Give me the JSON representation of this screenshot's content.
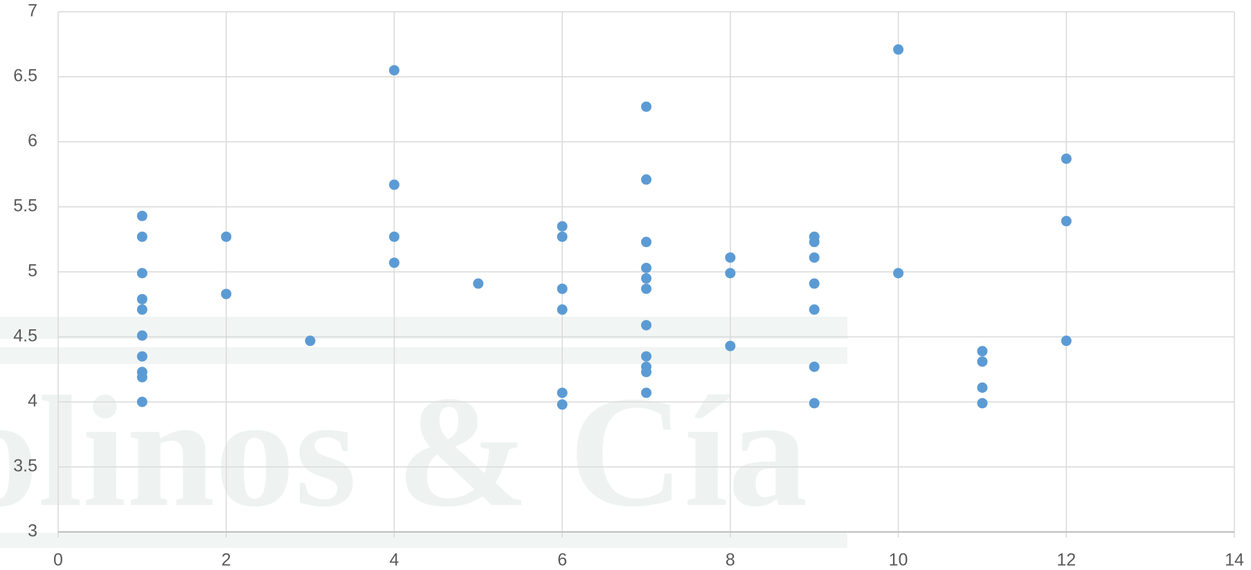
{
  "chart_data": {
    "type": "scatter",
    "watermark": "olinos & Cía",
    "x": [
      1,
      1,
      1,
      1,
      1,
      1,
      1,
      1,
      1,
      1,
      2,
      2,
      3,
      4,
      4,
      4,
      4,
      5,
      6,
      6,
      6,
      6,
      6,
      6,
      7,
      7,
      7,
      7,
      7,
      7,
      7,
      7,
      7,
      7,
      7,
      8,
      8,
      8,
      9,
      9,
      9,
      9,
      9,
      9,
      9,
      10,
      10,
      11,
      11,
      11,
      11,
      12,
      12,
      12
    ],
    "values": [
      5.43,
      5.27,
      4.99,
      4.79,
      4.71,
      4.51,
      4.35,
      4.23,
      4.19,
      4.0,
      5.27,
      4.83,
      4.47,
      6.55,
      5.67,
      5.27,
      5.07,
      4.91,
      5.35,
      5.27,
      4.87,
      4.71,
      4.07,
      3.98,
      6.27,
      5.71,
      5.23,
      5.03,
      4.95,
      4.87,
      4.59,
      4.35,
      4.27,
      4.23,
      4.07,
      5.11,
      4.99,
      4.43,
      5.27,
      5.23,
      5.11,
      4.91,
      4.71,
      4.27,
      3.99,
      6.71,
      4.99,
      4.39,
      4.31,
      4.11,
      3.99,
      5.87,
      5.39,
      4.47
    ],
    "color": "#5b9bd5",
    "xlim": [
      0,
      14
    ],
    "xticks": [
      0,
      2,
      4,
      6,
      8,
      10,
      12,
      14
    ],
    "ylim": [
      3,
      7
    ],
    "yticks": [
      3,
      3.5,
      4,
      4.5,
      5,
      5.5,
      6,
      6.5,
      7
    ],
    "grid": true
  }
}
